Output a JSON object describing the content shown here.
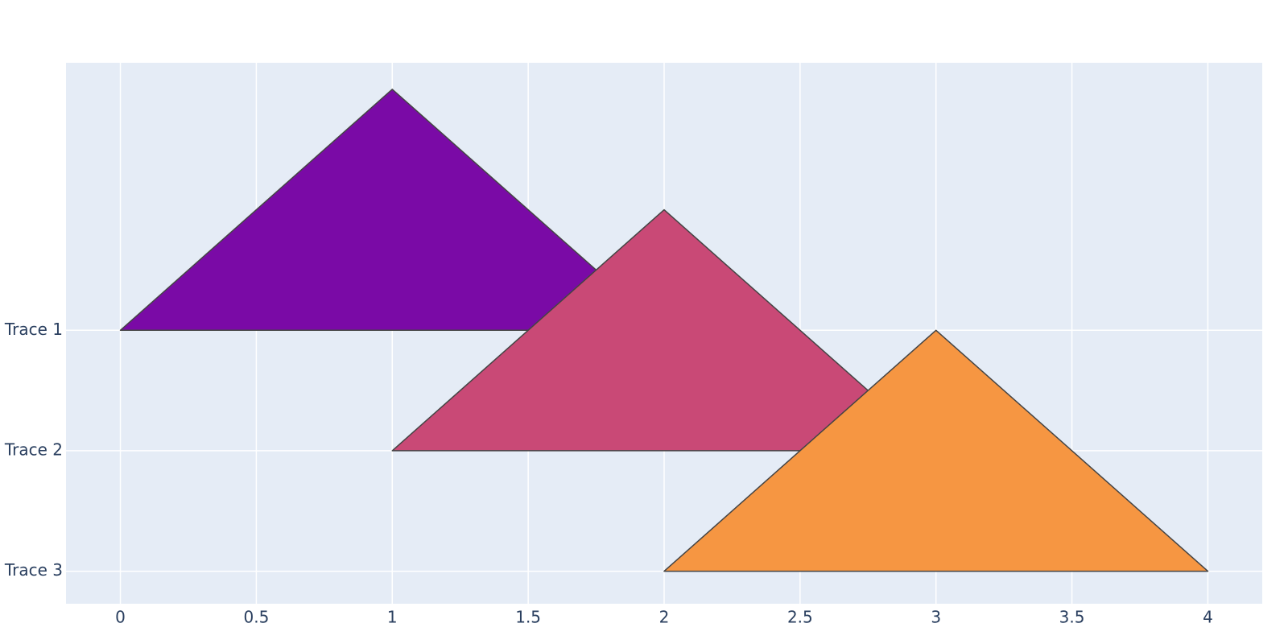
{
  "chart_data": {
    "type": "ridgeline",
    "series": [
      {
        "color": "#7a0aa6",
        "x": [
          0,
          1,
          2
        ],
        "values": [
          2,
          4,
          2
        ]
      },
      {
        "color": "#c94976",
        "x": [
          1,
          2,
          3
        ],
        "values": [
          1,
          3,
          1
        ]
      },
      {
        "color": "#f69642",
        "x": [
          2,
          3,
          4
        ],
        "values": [
          0,
          2,
          0
        ]
      }
    ],
    "xlim": [
      -0.2,
      4.2
    ],
    "xticks": [
      0,
      0.5,
      1,
      1.5,
      2,
      2.5,
      3,
      3.5,
      4
    ],
    "ylim": [
      -0.27,
      4.22
    ],
    "yticks": [
      {
        "value": 2,
        "label": "Trace 1"
      },
      {
        "value": 1,
        "label": "Trace 2"
      },
      {
        "value": 0,
        "label": "Trace 3"
      }
    ],
    "grid": true,
    "plot_background": "#e5ecf6"
  }
}
